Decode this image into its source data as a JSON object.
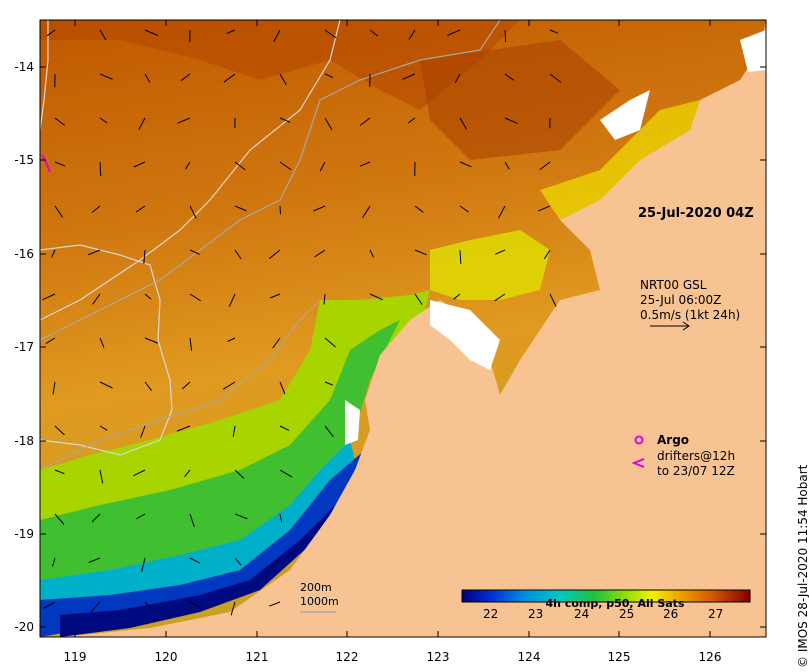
{
  "map": {
    "date_label": "25-Jul-2020 04Z",
    "y_ticks": [
      "-14",
      "-15",
      "-16",
      "-17",
      "-18",
      "-19",
      "-20"
    ],
    "x_ticks": [
      "119",
      "120",
      "121",
      "122",
      "123",
      "124",
      "125",
      "126"
    ]
  },
  "current_legend": {
    "line1": "NRT00 GSL",
    "line2": "25-Jul 06:00Z",
    "line3": "0.5m/s (1kt 24h)"
  },
  "argo": {
    "label": "Argo"
  },
  "drifters": {
    "line1": "drifters@12h",
    "line2": "to 23/07 12Z"
  },
  "isobaths": {
    "label1": "200m",
    "label2": "1000m"
  },
  "colorbar": {
    "title": "4h comp, p50, All Sats",
    "ticks": [
      "22",
      "23",
      "24",
      "25",
      "26",
      "27"
    ]
  },
  "credit": "© IMOS 28-Jul-2020 11:54 Hobart",
  "colors": {
    "land": "#f7c393",
    "argo": "#e000e0",
    "isobath_200": "#d8d8d8",
    "isobath_1000": "#a8a8a8"
  }
}
